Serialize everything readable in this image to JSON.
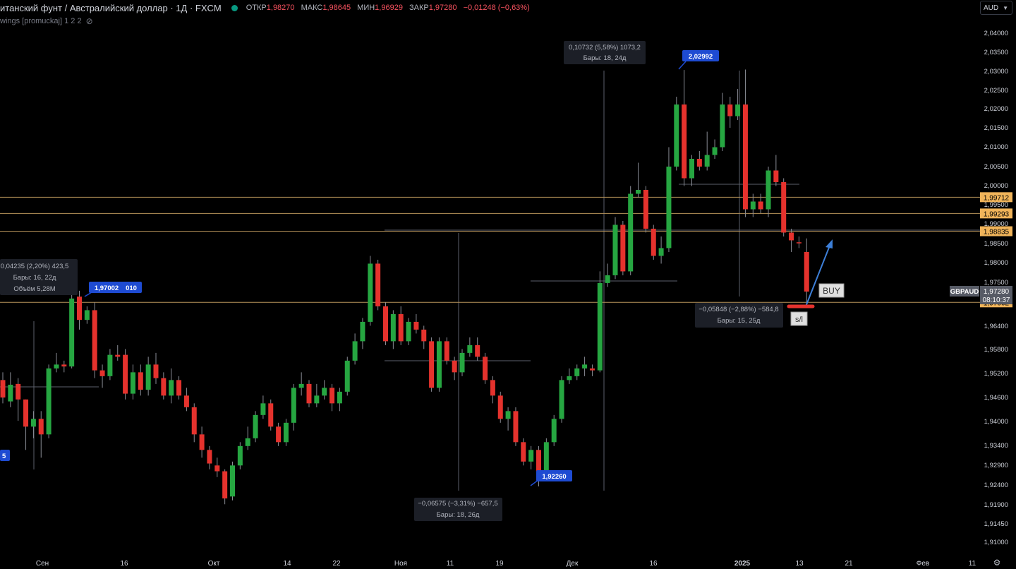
{
  "header": {
    "title": "итанский фунт / Австралийский доллар · 1Д · FXCM",
    "open_label": "ОТКР",
    "open_value": "1,98270",
    "high_label": "МАКС",
    "high_value": "1,98645",
    "low_label": "МИН",
    "low_value": "1,96929",
    "close_label": "ЗАКР",
    "close_value": "1,97280",
    "change": "−0,01248 (−0,63%)"
  },
  "indicator": {
    "label": "wings [promuckaj]",
    "params": "1 2 2",
    "icon": "eye-off-icon"
  },
  "currency_selector": {
    "value": "AUD",
    "icon": "chevron-down-icon"
  },
  "settings": {
    "icon": "gear-icon"
  },
  "colors": {
    "up": "#26a641",
    "down": "#e5322d",
    "hline": "#b8945a",
    "blue_label": "#1e4bd2",
    "arrow": "#3d7fd8"
  },
  "chart_data": {
    "type": "candlestick",
    "symbol": "GBPAUD",
    "price_axis_ticks": [
      "2,04000",
      "2,03500",
      "2,03000",
      "2,02500",
      "2,02000",
      "2,01500",
      "2,01000",
      "2,00500",
      "2,00000",
      "1,99500",
      "1,99000",
      "1,98500",
      "1,98000",
      "1,97500",
      "1,97000",
      "1,96400",
      "1,95800",
      "1,95200",
      "1,94600",
      "1,94000",
      "1,93400",
      "1,92900",
      "1,92400",
      "1,91900",
      "1,91450",
      "1,91000"
    ],
    "time_axis_labels": [
      "Сен",
      "16",
      "Окт",
      "14",
      "22",
      "Ноя",
      "11",
      "19",
      "Дек",
      "16",
      "2025",
      "13",
      "21",
      "Фев",
      "11"
    ],
    "candles": [
      [
        1.95,
        1.9455,
        1.952,
        1.944
      ],
      [
        1.9445,
        1.9488,
        1.952,
        1.943
      ],
      [
        1.949,
        1.945,
        1.9505,
        1.9395
      ],
      [
        1.945,
        1.938,
        1.945,
        1.932
      ],
      [
        1.938,
        1.94,
        1.942,
        1.935
      ],
      [
        1.94,
        1.936,
        1.942,
        1.93
      ],
      [
        1.936,
        1.953,
        1.954,
        1.935
      ],
      [
        1.953,
        1.954,
        1.957,
        1.952
      ],
      [
        1.954,
        1.9535,
        1.955,
        1.952
      ],
      [
        1.9535,
        1.971,
        1.972,
        1.953
      ],
      [
        1.9715,
        1.9655,
        1.973,
        1.963
      ],
      [
        1.9655,
        1.968,
        1.969,
        1.9645
      ],
      [
        1.968,
        1.9525,
        1.97,
        1.9505
      ],
      [
        1.9525,
        1.951,
        1.954,
        1.948
      ],
      [
        1.951,
        1.9565,
        1.958,
        1.95
      ],
      [
        1.9565,
        1.956,
        1.959,
        1.955
      ],
      [
        1.9565,
        1.9465,
        1.958,
        1.945
      ],
      [
        1.9465,
        1.952,
        1.954,
        1.945
      ],
      [
        1.952,
        1.9475,
        1.954,
        1.946
      ],
      [
        1.9475,
        1.954,
        1.956,
        1.946
      ],
      [
        1.954,
        1.9505,
        1.957,
        1.949
      ],
      [
        1.9505,
        1.946,
        1.952,
        1.945
      ],
      [
        1.946,
        1.95,
        1.953,
        1.944
      ],
      [
        1.95,
        1.946,
        1.951,
        1.945
      ],
      [
        1.946,
        1.943,
        1.948,
        1.942
      ],
      [
        1.943,
        1.936,
        1.944,
        1.934
      ],
      [
        1.936,
        1.932,
        1.938,
        1.93
      ],
      [
        1.932,
        1.9285,
        1.933,
        1.927
      ],
      [
        1.928,
        1.9265,
        1.93,
        1.925
      ],
      [
        1.9265,
        1.9195,
        1.927,
        1.918
      ],
      [
        1.92,
        1.928,
        1.929,
        1.919
      ],
      [
        1.928,
        1.933,
        1.934,
        1.927
      ],
      [
        1.933,
        1.935,
        1.938,
        1.932
      ],
      [
        1.935,
        1.941,
        1.942,
        1.934
      ],
      [
        1.941,
        1.944,
        1.946,
        1.94
      ],
      [
        1.944,
        1.938,
        1.945,
        1.937
      ],
      [
        1.938,
        1.934,
        1.939,
        1.933
      ],
      [
        1.934,
        1.939,
        1.94,
        1.933
      ],
      [
        1.939,
        1.948,
        1.949,
        1.937
      ],
      [
        1.948,
        1.949,
        1.952,
        1.946
      ],
      [
        1.949,
        1.944,
        1.95,
        1.943
      ],
      [
        1.944,
        1.946,
        1.949,
        1.943
      ],
      [
        1.946,
        1.948,
        1.95,
        1.945
      ],
      [
        1.948,
        1.944,
        1.949,
        1.942
      ],
      [
        1.944,
        1.947,
        1.948,
        1.942
      ],
      [
        1.947,
        1.955,
        1.956,
        1.946
      ],
      [
        1.955,
        1.96,
        1.962,
        1.954
      ],
      [
        1.96,
        1.965,
        1.966,
        1.958
      ],
      [
        1.965,
        1.98,
        1.982,
        1.964
      ],
      [
        1.98,
        1.969,
        1.981,
        1.968
      ],
      [
        1.969,
        1.96,
        1.97,
        1.959
      ],
      [
        1.96,
        1.967,
        1.968,
        1.958
      ],
      [
        1.967,
        1.96,
        1.969,
        1.959
      ],
      [
        1.96,
        1.965,
        1.966,
        1.959
      ],
      [
        1.965,
        1.963,
        1.967,
        1.962
      ],
      [
        1.963,
        1.96,
        1.964,
        1.958
      ],
      [
        1.96,
        1.948,
        1.961,
        1.947
      ],
      [
        1.948,
        1.96,
        1.961,
        1.947
      ],
      [
        1.96,
        1.955,
        1.961,
        1.954
      ],
      [
        1.955,
        1.952,
        1.956,
        1.95
      ],
      [
        1.952,
        1.957,
        1.958,
        1.951
      ],
      [
        1.957,
        1.959,
        1.961,
        1.956
      ],
      [
        1.959,
        1.956,
        1.961,
        1.955
      ],
      [
        1.956,
        1.95,
        1.957,
        1.949
      ],
      [
        1.95,
        1.946,
        1.951,
        1.944
      ],
      [
        1.946,
        1.94,
        1.947,
        1.939
      ],
      [
        1.94,
        1.942,
        1.943,
        1.937
      ],
      [
        1.942,
        1.934,
        1.943,
        1.933
      ],
      [
        1.934,
        1.929,
        1.935,
        1.928
      ],
      [
        1.929,
        1.932,
        1.933,
        1.927
      ],
      [
        1.932,
        1.925,
        1.933,
        1.9226
      ],
      [
        1.925,
        1.934,
        1.935,
        1.924
      ],
      [
        1.934,
        1.94,
        1.941,
        1.933
      ],
      [
        1.94,
        1.95,
        1.951,
        1.939
      ],
      [
        1.95,
        1.951,
        1.953,
        1.949
      ],
      [
        1.951,
        1.953,
        1.954,
        1.95
      ],
      [
        1.953,
        1.954,
        1.956,
        1.951
      ],
      [
        1.953,
        1.9525,
        1.954,
        1.951
      ],
      [
        1.9525,
        1.975,
        1.978,
        1.952
      ],
      [
        1.975,
        1.977,
        1.98,
        1.974
      ],
      [
        1.977,
        1.99,
        1.992,
        1.976
      ],
      [
        1.99,
        1.978,
        1.991,
        1.977
      ],
      [
        1.978,
        1.998,
        2.0,
        1.977
      ],
      [
        1.998,
        1.999,
        2.006,
        1.997
      ],
      [
        1.999,
        1.989,
        2.0,
        1.988
      ],
      [
        1.989,
        1.982,
        1.99,
        1.981
      ],
      [
        1.982,
        1.984,
        1.987,
        1.98
      ],
      [
        1.984,
        2.005,
        2.01,
        1.983
      ],
      [
        2.005,
        2.021,
        2.023,
        2.004
      ],
      [
        2.021,
        2.002,
        2.0299,
        2.0
      ],
      [
        2.002,
        2.007,
        2.008,
        2.0
      ],
      [
        2.007,
        2.005,
        2.009,
        2.004
      ],
      [
        2.005,
        2.008,
        2.014,
        2.004
      ],
      [
        2.008,
        2.01,
        2.012,
        2.007
      ],
      [
        2.01,
        2.021,
        2.024,
        2.009
      ],
      [
        2.021,
        2.018,
        2.023,
        2.015
      ],
      [
        2.018,
        2.021,
        2.025,
        2.017
      ],
      [
        2.021,
        1.994,
        2.03,
        1.992
      ],
      [
        1.994,
        1.996,
        1.998,
        1.992
      ],
      [
        1.996,
        1.994,
        1.998,
        1.993
      ],
      [
        1.994,
        2.004,
        2.005,
        1.992
      ],
      [
        2.004,
        2.001,
        2.008,
        2.0
      ],
      [
        2.001,
        1.988,
        2.002,
        1.987
      ],
      [
        1.988,
        1.986,
        1.989,
        1.983
      ],
      [
        1.9855,
        1.9853,
        1.987,
        1.984
      ],
      [
        1.983,
        1.9728,
        1.9865,
        1.9693
      ]
    ],
    "horizontal_lines": [
      {
        "price": 1.99712,
        "label": "1,99712"
      },
      {
        "price": 1.99293,
        "label": "1,99293"
      },
      {
        "price": 1.98835,
        "label": "1,98835"
      },
      {
        "price": 1.97002,
        "label": "1,97002"
      }
    ],
    "current_price": {
      "symbol": "GBPAUD",
      "value": "1,97280",
      "countdown": "08:10:37"
    },
    "price_markers": [
      {
        "label": "1,97002"
      },
      {
        "label": "010"
      },
      {
        "label": "2,02992"
      },
      {
        "label": "1,92260"
      },
      {
        "label": "5"
      }
    ],
    "measurements": [
      {
        "line1": "0,10732 (5,58%) 1073,2",
        "line2": "Бары: 18, 24д"
      },
      {
        "line1": "−0,05848 (−2,88%) −584,8",
        "line2": "Бары: 15, 25д"
      },
      {
        "line1": "−0,06575 (−3,31%) −657,5",
        "line2": "Бары: 18, 26д"
      },
      {
        "line1": "0,04235 (2,20%) 423,5",
        "line2": "Бары: 16, 22д",
        "line3": "Объём 5,28M"
      }
    ],
    "trade_labels": {
      "buy": "BUY",
      "sl": "s/l"
    }
  }
}
